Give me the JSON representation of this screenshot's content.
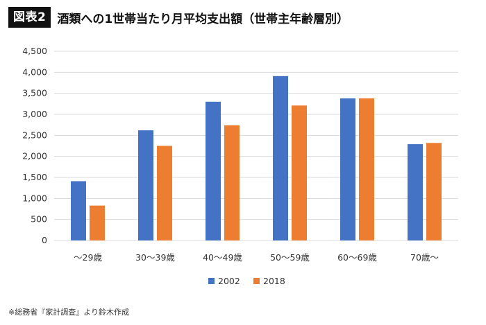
{
  "header": {
    "badge": "図表2",
    "title": "酒類への1世帯当たり月平均支出額（世帯主年齢層別）"
  },
  "source_note": "※総務省『家計調査』より鈴木作成",
  "colors": {
    "series_2002": "#4472C4",
    "series_2018": "#ED7D31",
    "grid": "#D9D9D9"
  },
  "chart_data": {
    "type": "bar",
    "title": "酒類への1世帯当たり月平均支出額（世帯主年齢層別）",
    "xlabel": "",
    "ylabel": "",
    "categories": [
      "～29歳",
      "30～39歳",
      "40～49歳",
      "50～59歳",
      "60～69歳",
      "70歳～"
    ],
    "series": [
      {
        "name": "2002",
        "values": [
          1410,
          2620,
          3300,
          3910,
          3380,
          2290
        ]
      },
      {
        "name": "2018",
        "values": [
          830,
          2250,
          2740,
          3210,
          3380,
          2320
        ]
      }
    ],
    "ylim": [
      0,
      4500
    ],
    "yticks": [
      0,
      500,
      1000,
      1500,
      2000,
      2500,
      3000,
      3500,
      4000,
      4500
    ],
    "ytick_labels": [
      "0",
      "500",
      "1,000",
      "1,500",
      "2,000",
      "2,500",
      "3,000",
      "3,500",
      "4,000",
      "4,500"
    ],
    "grid": true,
    "legend_position": "bottom"
  }
}
